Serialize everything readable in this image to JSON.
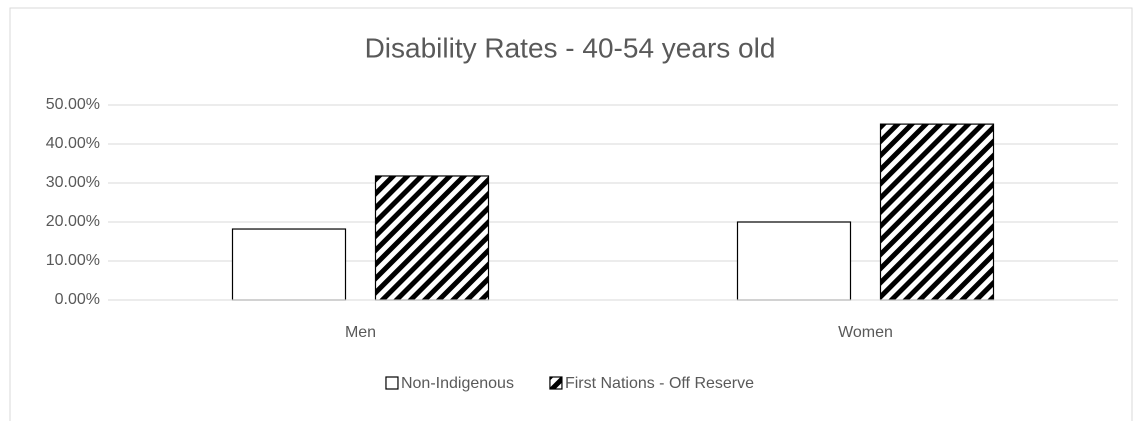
{
  "chart_data": {
    "type": "bar",
    "title": "Disability Rates - 40-54 years old",
    "categories": [
      "Men",
      "Women"
    ],
    "series": [
      {
        "name": "Non-Indigenous",
        "color": "#ffffff",
        "hatch": false,
        "values": [
          18.2,
          20.0
        ]
      },
      {
        "name": "First Nations - Off Reserve",
        "color": "#000000",
        "hatch": true,
        "values": [
          31.8,
          45.1
        ]
      }
    ],
    "ylim": [
      0,
      50
    ],
    "yticks": [
      {
        "value": 0,
        "label": "0.00%"
      },
      {
        "value": 10,
        "label": "10.00%"
      },
      {
        "value": 20,
        "label": "20.00%"
      },
      {
        "value": 30,
        "label": "30.00%"
      },
      {
        "value": 40,
        "label": "40.00%"
      },
      {
        "value": 50,
        "label": "50.00%"
      }
    ],
    "grid": true,
    "legend": "bottom"
  }
}
